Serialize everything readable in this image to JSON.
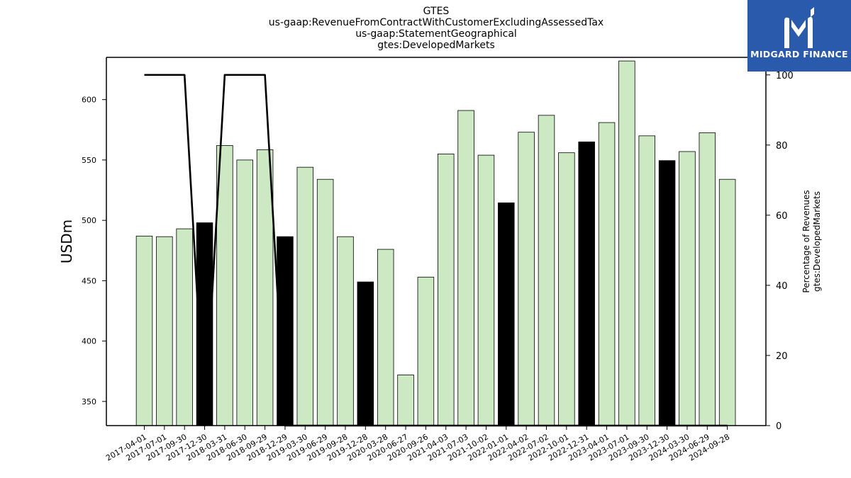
{
  "title_lines": [
    "GTES",
    "us-gaap:RevenueFromContractWithCustomerExcludingAssessedTax",
    "us-gaap:StatementGeographical",
    "gtes:DevelopedMarkets"
  ],
  "logo": {
    "text": "MIDGARD FINANCE",
    "color": "#2a5aab",
    "icon": "midgard-m-mark"
  },
  "colors": {
    "bar_light": "#cce9c4",
    "bar_dark": "#000000",
    "line": "#000000"
  },
  "chart_data": {
    "type": "bar",
    "categories": [
      "2017-04-01",
      "2017-07-01",
      "2017-09-30",
      "2017-12-30",
      "2018-03-31",
      "2018-06-30",
      "2018-09-29",
      "2018-12-29",
      "2019-03-30",
      "2019-06-29",
      "2019-09-28",
      "2019-12-28",
      "2020-03-28",
      "2020-06-27",
      "2020-09-26",
      "2021-04-03",
      "2021-07-03",
      "2021-10-02",
      "2022-01-01",
      "2022-04-02",
      "2022-07-02",
      "2022-10-01",
      "2022-12-31",
      "2023-04-01",
      "2023-07-01",
      "2023-09-30",
      "2023-12-30",
      "2024-03-30",
      "2024-06-29",
      "2024-09-28"
    ],
    "values": [
      487,
      486.5,
      493,
      498,
      562,
      550,
      558.5,
      486.5,
      544,
      534,
      486.5,
      449,
      476,
      372,
      453,
      555,
      591,
      554,
      514.5,
      573,
      587,
      556,
      565,
      581,
      632,
      570,
      549.5,
      557,
      572.5,
      534
    ],
    "highlight": [
      false,
      false,
      false,
      true,
      false,
      false,
      false,
      true,
      false,
      false,
      false,
      true,
      false,
      false,
      false,
      false,
      false,
      false,
      true,
      false,
      false,
      false,
      true,
      false,
      false,
      false,
      true,
      false,
      false,
      false
    ],
    "ylabel": "USDm",
    "ylim": [
      330,
      635
    ],
    "yticks": [
      350,
      400,
      450,
      500,
      550,
      600
    ],
    "secondary": {
      "ylabel_lines": [
        "Percentage of Revenues",
        "gtes:DevelopedMarkets"
      ],
      "ylim": [
        0,
        105
      ],
      "yticks": [
        0,
        20,
        40,
        60,
        80,
        100
      ],
      "values": [
        100,
        100,
        100,
        0,
        100,
        100,
        100,
        0,
        0,
        0,
        0,
        0,
        0,
        0,
        0,
        0,
        0,
        0,
        0,
        0,
        0,
        0,
        0,
        0,
        0,
        0,
        0,
        0,
        0,
        0
      ]
    }
  }
}
